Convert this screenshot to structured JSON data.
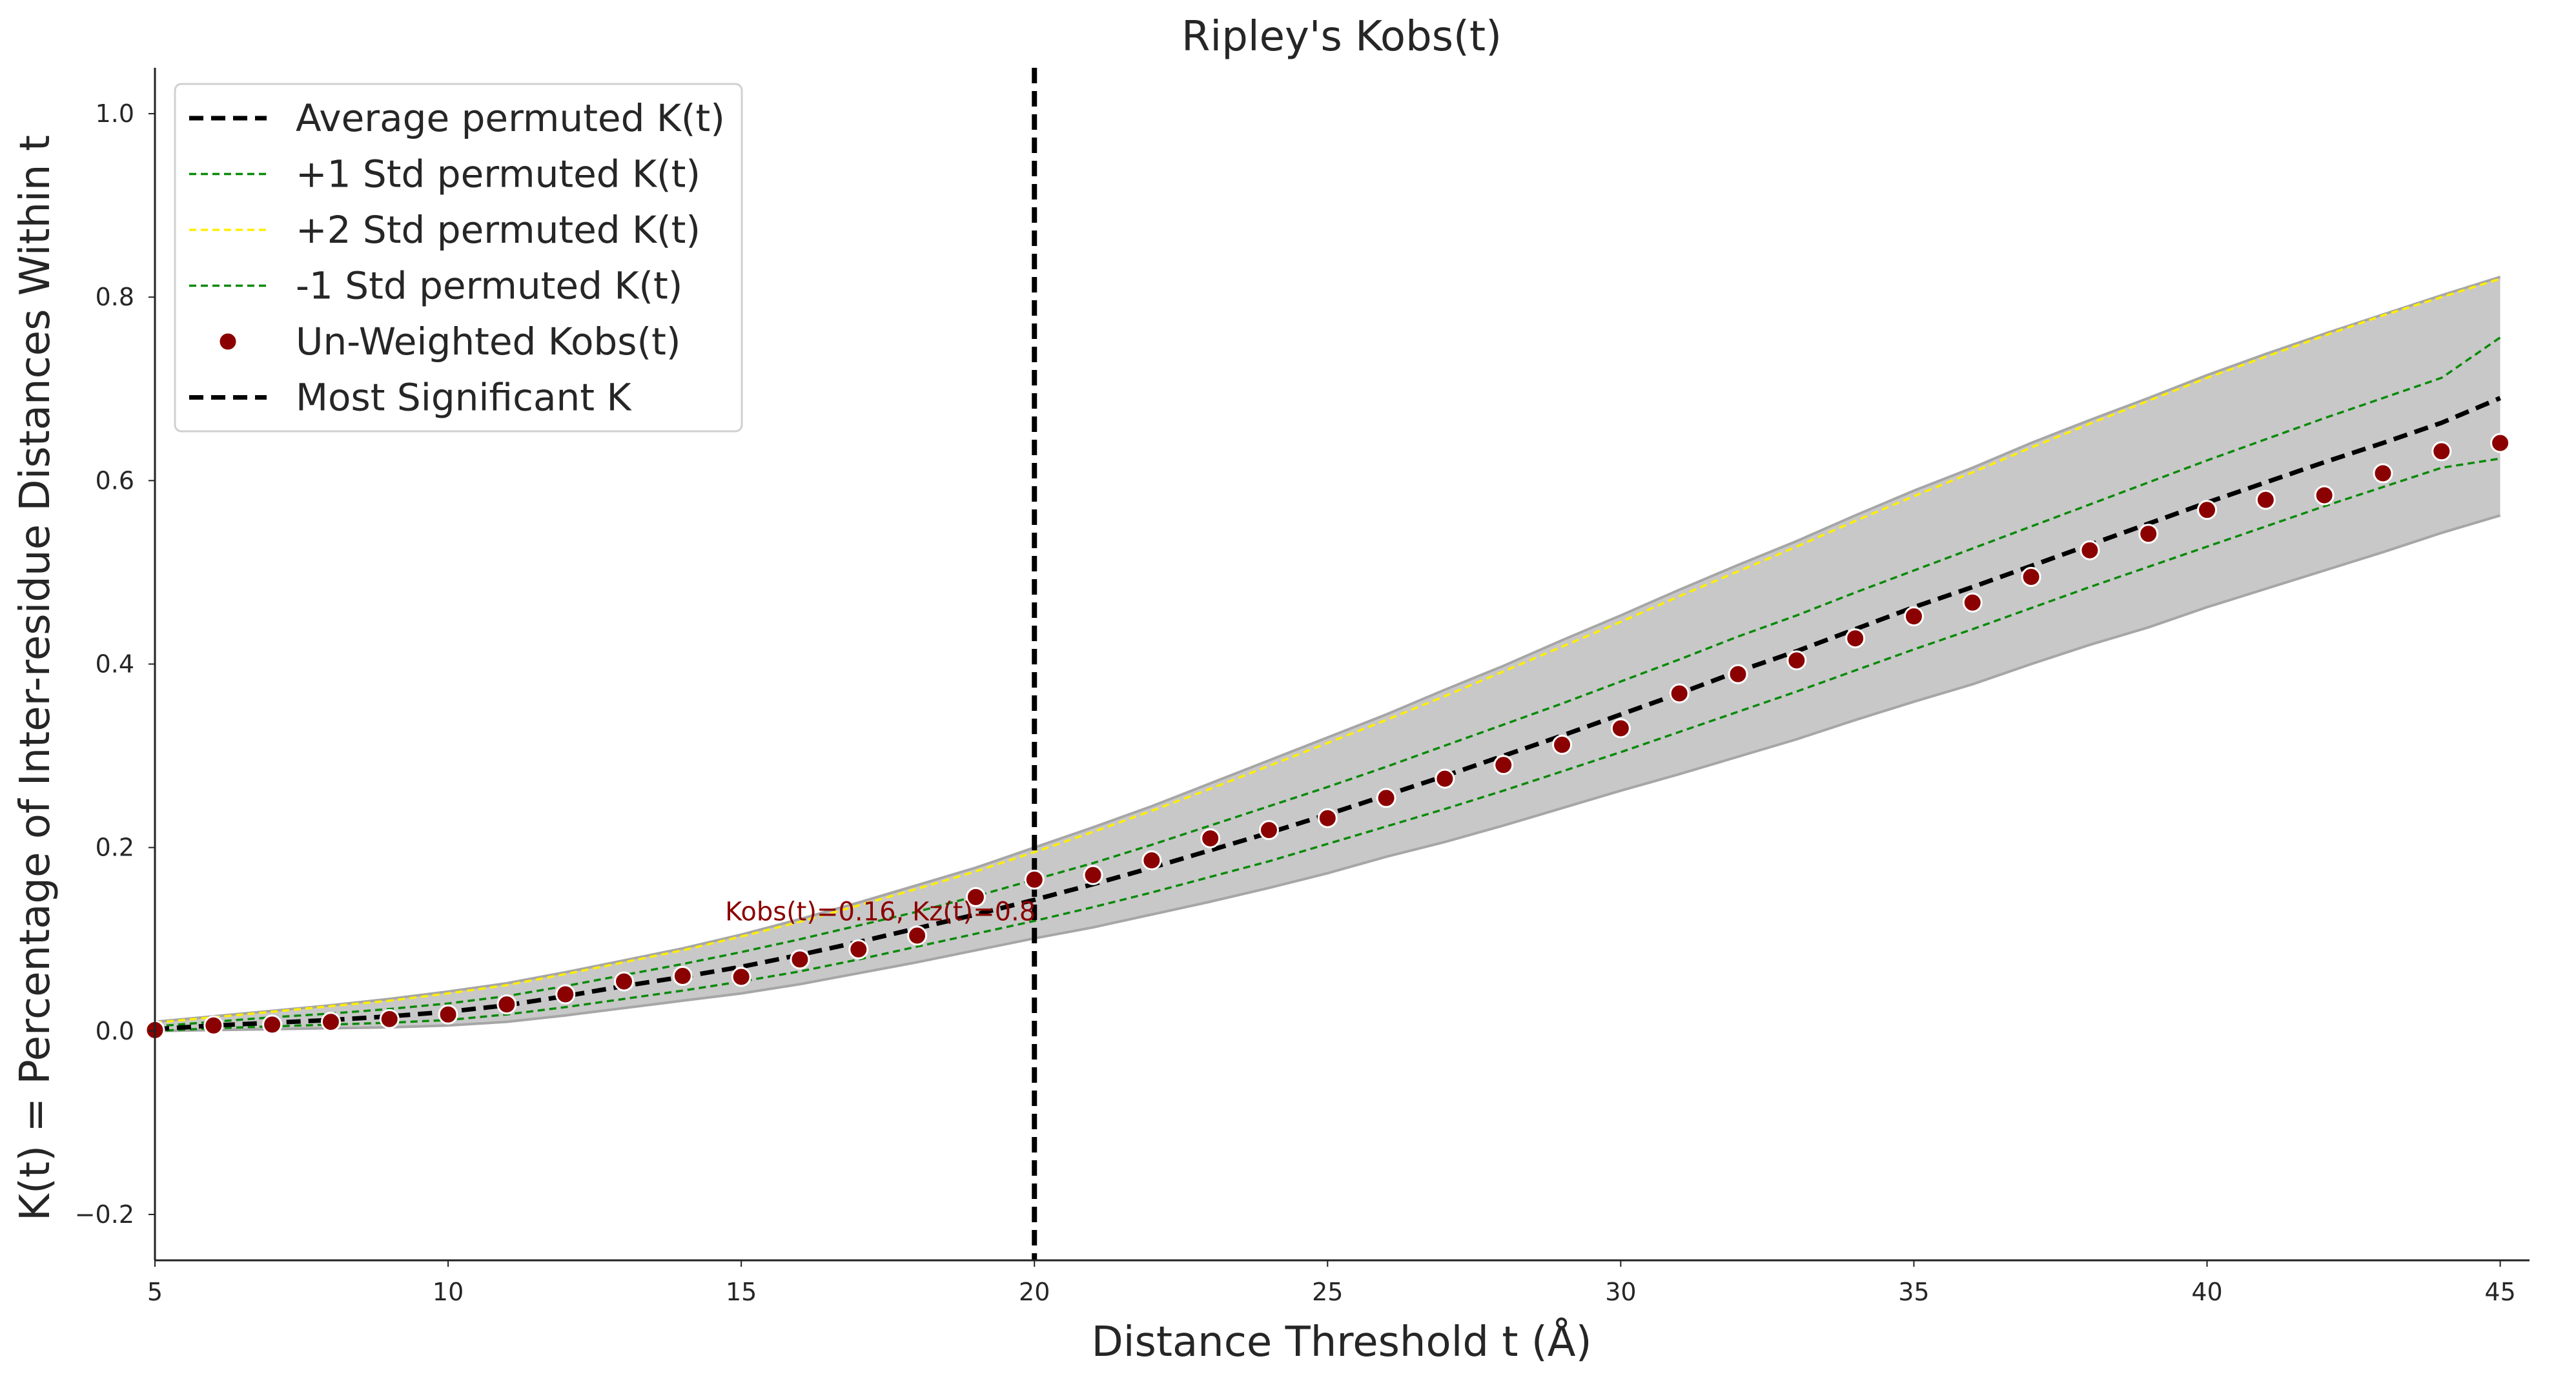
{
  "chart_data": {
    "type": "line",
    "title": "Ripley's Kobs(t)",
    "xlabel": "Distance Threshold t (Å)",
    "ylabel": "K(t) = Percentage of Inter-residue Distances Within t",
    "xlim": [
      5,
      45.5
    ],
    "ylim": [
      -0.25,
      1.05
    ],
    "xticks": [
      5,
      10,
      15,
      20,
      25,
      30,
      35,
      40,
      45
    ],
    "xtick_labels": [
      "5",
      "10",
      "15",
      "20",
      "25",
      "30",
      "35",
      "40",
      "45"
    ],
    "yticks": [
      -0.2,
      0.0,
      0.2,
      0.4,
      0.6,
      0.8,
      1.0
    ],
    "ytick_labels": [
      "−0.2",
      "0.0",
      "0.2",
      "0.4",
      "0.6",
      "0.8",
      "1.0"
    ],
    "grid": false,
    "legend_position": "top-left",
    "x": [
      5,
      6,
      7,
      8,
      9,
      10,
      11,
      12,
      13,
      14,
      15,
      16,
      17,
      18,
      19,
      20,
      21,
      22,
      23,
      24,
      25,
      26,
      27,
      28,
      29,
      30,
      31,
      32,
      33,
      34,
      35,
      36,
      37,
      38,
      39,
      40,
      41,
      42,
      43,
      44,
      45
    ],
    "band": {
      "color": "#c8c8c8",
      "edge_color": "#a6a6a6",
      "upper": [
        0.01,
        0.016,
        0.022,
        0.028,
        0.035,
        0.043,
        0.052,
        0.064,
        0.077,
        0.09,
        0.105,
        0.122,
        0.14,
        0.159,
        0.178,
        0.2,
        0.222,
        0.245,
        0.27,
        0.295,
        0.32,
        0.345,
        0.372,
        0.398,
        0.426,
        0.453,
        0.481,
        0.508,
        0.534,
        0.562,
        0.589,
        0.614,
        0.641,
        0.666,
        0.69,
        0.715,
        0.738,
        0.76,
        0.781,
        0.802,
        0.822
      ],
      "lower": [
        0.0,
        0.001,
        0.002,
        0.003,
        0.004,
        0.006,
        0.01,
        0.017,
        0.025,
        0.033,
        0.041,
        0.051,
        0.063,
        0.075,
        0.088,
        0.101,
        0.113,
        0.127,
        0.141,
        0.156,
        0.172,
        0.19,
        0.206,
        0.224,
        0.243,
        0.262,
        0.28,
        0.299,
        0.318,
        0.339,
        0.359,
        0.378,
        0.4,
        0.421,
        0.44,
        0.462,
        0.482,
        0.502,
        0.522,
        0.543,
        0.562
      ]
    },
    "series": [
      {
        "name": "Average permuted K(t)",
        "style": "dashed",
        "color": "#000000",
        "values": [
          0.002,
          0.006,
          0.009,
          0.012,
          0.016,
          0.021,
          0.028,
          0.038,
          0.049,
          0.059,
          0.07,
          0.083,
          0.097,
          0.112,
          0.127,
          0.143,
          0.16,
          0.178,
          0.197,
          0.216,
          0.236,
          0.257,
          0.278,
          0.3,
          0.322,
          0.345,
          0.368,
          0.392,
          0.414,
          0.438,
          0.462,
          0.484,
          0.507,
          0.53,
          0.553,
          0.576,
          0.598,
          0.62,
          0.641,
          0.663,
          0.69
        ]
      },
      {
        "name": "+1 Std permuted K(t)",
        "style": "dashed-thin",
        "color": "#0a8a0a",
        "values": [
          0.005,
          0.01,
          0.015,
          0.019,
          0.024,
          0.03,
          0.038,
          0.049,
          0.061,
          0.073,
          0.086,
          0.1,
          0.115,
          0.13,
          0.147,
          0.165,
          0.183,
          0.203,
          0.224,
          0.245,
          0.266,
          0.288,
          0.311,
          0.334,
          0.357,
          0.381,
          0.405,
          0.43,
          0.453,
          0.478,
          0.502,
          0.526,
          0.55,
          0.574,
          0.598,
          0.622,
          0.645,
          0.668,
          0.69,
          0.712,
          0.756
        ]
      },
      {
        "name": "+2 Std permuted K(t)",
        "style": "dashed-thin",
        "color": "#ffee00",
        "values": [
          0.009,
          0.015,
          0.021,
          0.027,
          0.033,
          0.041,
          0.05,
          0.062,
          0.075,
          0.088,
          0.103,
          0.119,
          0.137,
          0.155,
          0.174,
          0.195,
          0.217,
          0.24,
          0.264,
          0.289,
          0.314,
          0.339,
          0.365,
          0.392,
          0.419,
          0.446,
          0.474,
          0.501,
          0.528,
          0.556,
          0.583,
          0.609,
          0.636,
          0.662,
          0.687,
          0.712,
          0.735,
          0.758,
          0.78,
          0.8,
          0.82
        ]
      },
      {
        "name": "-1 Std permuted K(t)",
        "style": "dashed-thin",
        "color": "#0a8a0a",
        "values": [
          0.0,
          0.003,
          0.005,
          0.007,
          0.009,
          0.012,
          0.018,
          0.026,
          0.035,
          0.044,
          0.054,
          0.065,
          0.078,
          0.092,
          0.106,
          0.12,
          0.135,
          0.151,
          0.168,
          0.185,
          0.204,
          0.223,
          0.242,
          0.262,
          0.283,
          0.304,
          0.326,
          0.348,
          0.37,
          0.393,
          0.416,
          0.438,
          0.461,
          0.484,
          0.506,
          0.528,
          0.55,
          0.572,
          0.593,
          0.614,
          0.624
        ]
      }
    ],
    "scatter": {
      "name": "Un-Weighted Kobs(t)",
      "color": "#8b0000",
      "values": [
        0.001,
        0.006,
        0.007,
        0.01,
        0.013,
        0.018,
        0.029,
        0.04,
        0.054,
        0.06,
        0.059,
        0.078,
        0.089,
        0.104,
        0.146,
        0.165,
        0.17,
        0.186,
        0.21,
        0.219,
        0.232,
        0.254,
        0.275,
        0.29,
        0.312,
        0.33,
        0.368,
        0.389,
        0.404,
        0.428,
        0.452,
        0.467,
        0.495,
        0.524,
        0.542,
        0.568,
        0.579,
        0.584,
        0.608,
        0.632,
        0.641
      ]
    },
    "vline": {
      "name": "Most Significant K",
      "x": 20,
      "color": "#000000",
      "style": "dashed"
    },
    "annotation": {
      "text": "Kobs(t)=0.16, Kz(t)=0.8",
      "x": 20,
      "y": 0.16,
      "color": "#8b0000"
    }
  }
}
